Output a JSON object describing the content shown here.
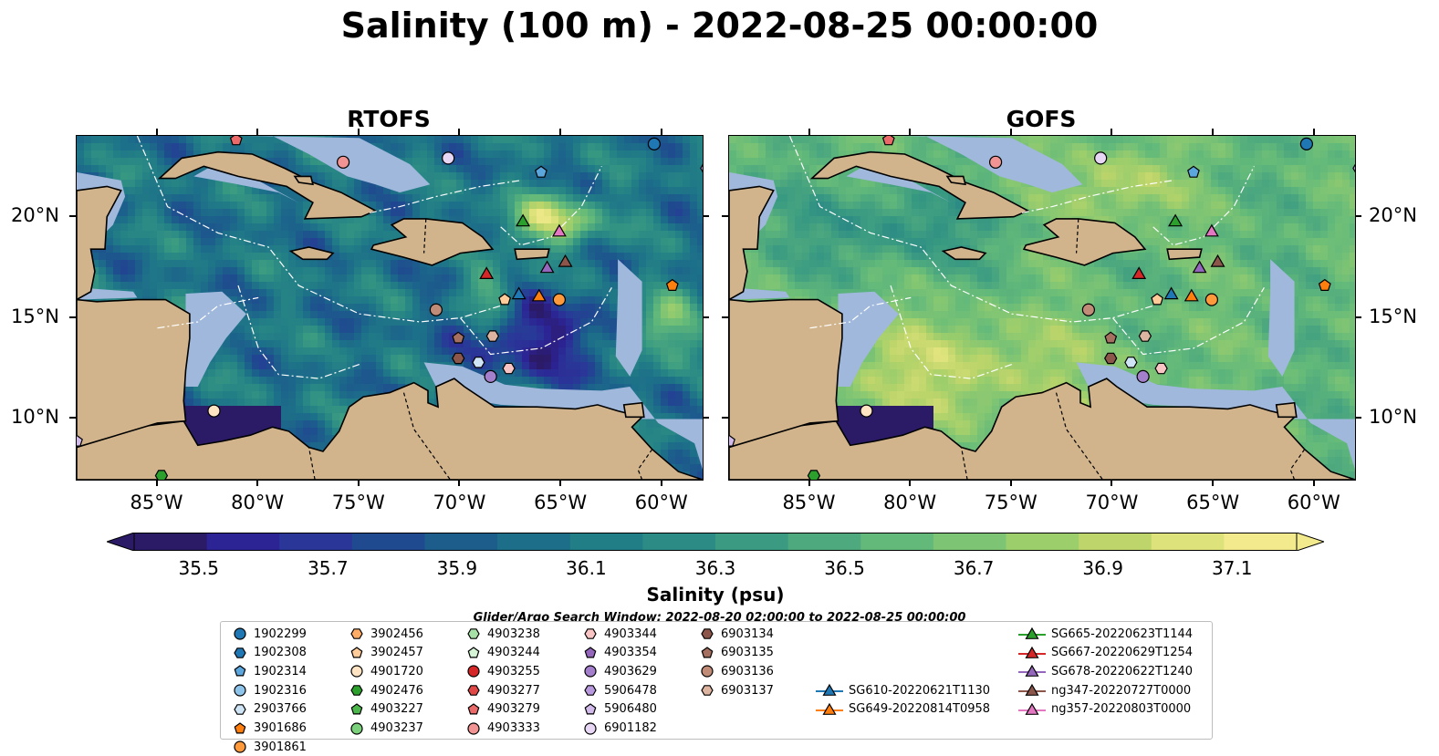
{
  "figure": {
    "title": "Salinity (100 m) - 2022-08-25 00:00:00",
    "panels": [
      {
        "id": "rtofs",
        "title": "RTOFS"
      },
      {
        "id": "gofs",
        "title": "GOFS"
      }
    ]
  },
  "map": {
    "extent": {
      "lon": [
        -89,
        -58
      ],
      "lat": [
        7,
        24
      ]
    },
    "lon_ticks": [
      -85,
      -80,
      -75,
      -70,
      -65,
      -60
    ],
    "lon_tick_labels": [
      "85°W",
      "80°W",
      "75°W",
      "70°W",
      "65°W",
      "60°W"
    ],
    "lat_ticks": [
      10,
      15,
      20
    ],
    "lat_tick_labels": [
      "10°N",
      "15°N",
      "20°N"
    ],
    "colors": {
      "land": "#d2b48c",
      "shelf": "#9fb8dc",
      "deep_low": "#2a1a6b"
    }
  },
  "colorbar": {
    "label": "Salinity (psu)",
    "tick_values": [
      35.5,
      35.7,
      35.9,
      36.1,
      36.3,
      36.5,
      36.7,
      36.9,
      37.1
    ],
    "tick_labels": [
      "35.5",
      "35.7",
      "35.9",
      "36.1",
      "36.3",
      "36.5",
      "36.7",
      "36.9",
      "37.1"
    ],
    "range": [
      35.4,
      37.2
    ],
    "extend": "both",
    "colors": [
      "#2b1a65",
      "#2c2394",
      "#2a3798",
      "#1f4a8f",
      "#1c5d8c",
      "#1d6f89",
      "#227e86",
      "#2c8b84",
      "#3a9b82",
      "#4ea97e",
      "#62b97a",
      "#7dc474",
      "#9dce6c",
      "#bdd56b",
      "#dde27a",
      "#f3ea8d"
    ]
  },
  "legend": {
    "title": "Glider/Argo Search Window: 2022-08-20 02:00:00 to 2022-08-25 00:00:00",
    "entries": [
      {
        "label": "1902299",
        "marker": "circle",
        "color": "#1f77b4"
      },
      {
        "label": "1902308",
        "marker": "hexagon",
        "color": "#1f77b4"
      },
      {
        "label": "1902314",
        "marker": "pentagon",
        "color": "#5aa6dd"
      },
      {
        "label": "1902316",
        "marker": "circle",
        "color": "#8fc4ea"
      },
      {
        "label": "2903766",
        "marker": "hexagon",
        "color": "#cfe5f5"
      },
      {
        "label": "3901686",
        "marker": "pentagon",
        "color": "#ff7f0e"
      },
      {
        "label": "3901861",
        "marker": "circle",
        "color": "#ff9a3c"
      },
      {
        "label": "3902456",
        "marker": "hexagon",
        "color": "#ffad66"
      },
      {
        "label": "3902457",
        "marker": "pentagon",
        "color": "#ffcc99"
      },
      {
        "label": "4901720",
        "marker": "circle",
        "color": "#ffe4c4"
      },
      {
        "label": "4902476",
        "marker": "hexagon",
        "color": "#2ca02c"
      },
      {
        "label": "4903227",
        "marker": "pentagon",
        "color": "#4cb84c"
      },
      {
        "label": "4903237",
        "marker": "circle",
        "color": "#7bd17b"
      },
      {
        "label": "4903238",
        "marker": "hexagon",
        "color": "#a6e0a6"
      },
      {
        "label": "4903244",
        "marker": "pentagon",
        "color": "#d6f5d6"
      },
      {
        "label": "4903255",
        "marker": "circle",
        "color": "#d62728"
      },
      {
        "label": "4903277",
        "marker": "hexagon",
        "color": "#e04848"
      },
      {
        "label": "4903279",
        "marker": "pentagon",
        "color": "#ea6a6a"
      },
      {
        "label": "4903333",
        "marker": "circle",
        "color": "#f29494"
      },
      {
        "label": "4903344",
        "marker": "hexagon",
        "color": "#f9c4c4"
      },
      {
        "label": "4903354",
        "marker": "pentagon",
        "color": "#9467bd"
      },
      {
        "label": "4903629",
        "marker": "circle",
        "color": "#a37fcc"
      },
      {
        "label": "5906478",
        "marker": "hexagon",
        "color": "#b999dd"
      },
      {
        "label": "5906480",
        "marker": "pentagon",
        "color": "#d2bbea"
      },
      {
        "label": "6901182",
        "marker": "circle",
        "color": "#e8d6f5"
      },
      {
        "label": "6903134",
        "marker": "hexagon",
        "color": "#8c564b"
      },
      {
        "label": "6903135",
        "marker": "pentagon",
        "color": "#a5705f"
      },
      {
        "label": "6903136",
        "marker": "circle",
        "color": "#c08c78"
      },
      {
        "label": "6903137",
        "marker": "hexagon",
        "color": "#dcb4a0"
      },
      {
        "label": "SG610-20220621T1130",
        "marker": "triangle-line",
        "color": "#1f77b4"
      },
      {
        "label": "SG649-20220814T0958",
        "marker": "triangle-line",
        "color": "#ff7f0e"
      },
      {
        "label": "SG665-20220623T1144",
        "marker": "triangle-line",
        "color": "#2ca02c"
      },
      {
        "label": "SG667-20220629T1254",
        "marker": "triangle-line",
        "color": "#d62728"
      },
      {
        "label": "SG678-20220622T1240",
        "marker": "triangle-line",
        "color": "#9467bd"
      },
      {
        "label": "ng347-20220727T0000",
        "marker": "triangle-line",
        "color": "#8c564b"
      },
      {
        "label": "ng357-20220803T0000",
        "marker": "triangle-line",
        "color": "#e377c2"
      }
    ]
  },
  "observations": [
    {
      "id": "1902299",
      "lon": -60.4,
      "lat": 23.6
    },
    {
      "id": "3901686",
      "lon": -59.5,
      "lat": 16.6
    },
    {
      "id": "3901861",
      "lon": -65.1,
      "lat": 15.9
    },
    {
      "id": "3902457",
      "lon": -67.8,
      "lat": 15.9
    },
    {
      "id": "4901720",
      "lon": -82.2,
      "lat": 10.4
    },
    {
      "id": "4902476",
      "lon": -84.8,
      "lat": 7.2
    },
    {
      "id": "4903279",
      "lon": -81.1,
      "lat": 23.8
    },
    {
      "id": "4903333",
      "lon": -75.8,
      "lat": 22.7
    },
    {
      "id": "4903344",
      "lon": -67.6,
      "lat": 12.5
    },
    {
      "id": "4903629",
      "lon": -68.5,
      "lat": 12.1
    },
    {
      "id": "5906480",
      "lon": -89.0,
      "lat": 8.9
    },
    {
      "id": "6901182",
      "lon": -70.6,
      "lat": 22.9
    },
    {
      "id": "6903134",
      "lon": -70.1,
      "lat": 13.0
    },
    {
      "id": "6903135",
      "lon": -70.1,
      "lat": 14.0
    },
    {
      "id": "6903136",
      "lon": -71.2,
      "lat": 15.4
    },
    {
      "id": "6903137",
      "lon": -68.4,
      "lat": 14.1
    },
    {
      "id": "1902314",
      "lon": -66.0,
      "lat": 22.2
    },
    {
      "id": "2903766",
      "lon": -69.1,
      "lat": 12.8
    },
    {
      "id": "5906478",
      "lon": -57.8,
      "lat": 22.4
    },
    {
      "id": "SG610-20220621T1130",
      "lon": -67.1,
      "lat": 16.2
    },
    {
      "id": "SG649-20220814T0958",
      "lon": -66.1,
      "lat": 16.1
    },
    {
      "id": "SG665-20220623T1144",
      "lon": -66.9,
      "lat": 19.8
    },
    {
      "id": "SG667-20220629T1254",
      "lon": -68.7,
      "lat": 17.2
    },
    {
      "id": "SG678-20220622T1240",
      "lon": -65.7,
      "lat": 17.5
    },
    {
      "id": "ng347-20220727T0000",
      "lon": -64.8,
      "lat": 17.8
    },
    {
      "id": "ng357-20220803T0000",
      "lon": -65.1,
      "lat": 19.3
    }
  ]
}
